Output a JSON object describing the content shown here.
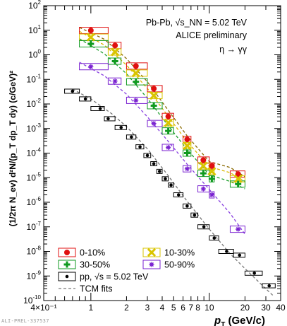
{
  "chart_data": {
    "type": "scatter",
    "title": "",
    "x_scale": "log",
    "y_scale": "log",
    "xlim": [
      0.4,
      40
    ],
    "ylim": [
      1e-10,
      100
    ],
    "xlabel": {
      "main": "p",
      "sub": "T",
      "unit": " (GeV/c)"
    },
    "ylabel": "(1/2π N_ev) d²N/(p_T dp_T dy) (c/GeV)²",
    "x_tick_labels": [
      {
        "value": 0.4,
        "label": "4×10⁻¹"
      },
      {
        "value": 1,
        "label": "1"
      },
      {
        "value": 2,
        "label": "2"
      },
      {
        "value": 3,
        "label": "3"
      },
      {
        "value": 4,
        "label": "4"
      },
      {
        "value": 5,
        "label": "5"
      },
      {
        "value": 6,
        "label": "6"
      },
      {
        "value": 7,
        "label": "7"
      },
      {
        "value": 8,
        "label": "8"
      },
      {
        "value": 10,
        "label": "10"
      },
      {
        "value": 20,
        "label": "20"
      },
      {
        "value": 30,
        "label": "30"
      },
      {
        "value": 40,
        "label": "40"
      }
    ],
    "y_tick_exponents": [
      -10,
      -9,
      -8,
      -7,
      -6,
      -5,
      -4,
      -3,
      -2,
      -1,
      0,
      1,
      2
    ],
    "annotations": {
      "system": "Pb-Pb, √s_NN = 5.02 TeV",
      "status": "ALICE preliminary",
      "channel": "η → γγ"
    },
    "series": [
      {
        "name": "0-10%",
        "color": "#e01010",
        "marker": "circle",
        "x": [
          1.0,
          1.6,
          2.4,
          3.4,
          4.5,
          6.5,
          8.9,
          10.5,
          17.5
        ],
        "y": [
          9.8,
          2.4,
          0.35,
          0.042,
          0.0031,
          0.00036,
          5.2e-05,
          3e-05,
          1.4e-05
        ],
        "x_lo": [
          0.8,
          1.4,
          2.0,
          3.0,
          4.0,
          6.0,
          8.0,
          10.0,
          15.0
        ],
        "x_hi": [
          1.4,
          1.8,
          3.0,
          4.0,
          5.0,
          7.0,
          10.0,
          11.0,
          20.0
        ]
      },
      {
        "name": "10-30%",
        "color": "#d9c400",
        "marker": "cross",
        "x": [
          1.0,
          1.6,
          2.4,
          3.4,
          4.5,
          6.5,
          8.9,
          10.5,
          17.5
        ],
        "y": [
          5.2,
          1.3,
          0.18,
          0.022,
          0.0017,
          0.0002,
          3e-05,
          1.8e-05,
          9e-06
        ],
        "x_lo": [
          0.8,
          1.4,
          2.0,
          3.0,
          4.0,
          6.0,
          8.0,
          10.0,
          15.0
        ],
        "x_hi": [
          1.4,
          1.8,
          3.0,
          4.0,
          5.0,
          7.0,
          10.0,
          11.0,
          20.0
        ]
      },
      {
        "name": "30-50%",
        "color": "#109a20",
        "marker": "plus",
        "x": [
          1.0,
          1.6,
          2.4,
          3.4,
          4.5,
          6.5,
          8.9,
          10.5,
          17.5
        ],
        "y": [
          2.8,
          0.55,
          0.08,
          0.0085,
          0.0008,
          0.0001,
          1.5e-05,
          9e-06,
          5.5e-06
        ],
        "x_lo": [
          0.8,
          1.4,
          2.0,
          3.0,
          4.0,
          6.0,
          8.0,
          10.0,
          15.0
        ],
        "x_hi": [
          1.4,
          1.8,
          3.0,
          4.0,
          5.0,
          7.0,
          10.0,
          11.0,
          20.0
        ]
      },
      {
        "name": "50-90%",
        "color": "#7a22d0",
        "marker": "star",
        "x": [
          1.0,
          1.6,
          2.4,
          3.4,
          4.5,
          6.5,
          8.9,
          10.5,
          17.5
        ],
        "y": [
          0.33,
          0.085,
          0.014,
          0.0016,
          0.00017,
          2.3e-05,
          3.5e-06,
          2e-06,
          8e-08
        ],
        "x_lo": [
          0.8,
          1.4,
          2.0,
          3.0,
          4.0,
          6.0,
          8.0,
          10.0,
          15.0
        ],
        "x_hi": [
          1.4,
          1.8,
          3.0,
          4.0,
          5.0,
          7.0,
          10.0,
          11.0,
          20.0
        ]
      },
      {
        "name": "pp, √s = 5.02 TeV",
        "color": "#000000",
        "marker": "dot",
        "x": [
          0.7,
          0.9,
          1.2,
          1.4,
          1.8,
          2.2,
          2.6,
          3.0,
          3.4,
          3.8,
          4.25,
          4.75,
          5.5,
          6.5,
          7.5,
          9.0,
          11.0,
          14.0,
          18.0,
          24.0,
          32.0
        ],
        "y": [
          0.033,
          0.016,
          0.0065,
          0.0025,
          0.0011,
          0.00045,
          0.00018,
          8e-05,
          3.7e-05,
          1.8e-05,
          9e-06,
          5e-06,
          2e-06,
          7e-07,
          3e-07,
          1e-07,
          3.5e-08,
          1e-08,
          7e-09,
          1.3e-09,
          4e-10
        ],
        "x_lo": [
          0.6,
          0.8,
          1.0,
          1.3,
          1.6,
          2.0,
          2.4,
          2.8,
          3.2,
          3.6,
          4.0,
          4.5,
          5.0,
          6.0,
          7.0,
          8.0,
          10.0,
          12.0,
          16.0,
          20.0,
          28.0
        ],
        "x_hi": [
          0.8,
          1.0,
          1.3,
          1.6,
          2.0,
          2.4,
          2.8,
          3.2,
          3.6,
          4.0,
          4.5,
          5.0,
          6.0,
          7.0,
          8.0,
          10.0,
          12.0,
          16.0,
          20.0,
          28.0,
          36.0
        ]
      }
    ],
    "fits": [
      {
        "name": "TCM fits",
        "color": "#8a6a00",
        "x": [
          0.8,
          1.3,
          2.0,
          3.0,
          4.5,
          6.5,
          10.0,
          15.0,
          20.0
        ],
        "y": [
          13,
          4.3,
          0.7,
          0.08,
          0.0055,
          0.0005,
          4.5e-05,
          2.6e-05,
          1.1e-05
        ]
      },
      {
        "name": "TCM fits",
        "color": "#d9b800",
        "x": [
          0.8,
          1.3,
          2.0,
          3.0,
          4.5,
          6.5,
          10.0,
          15.0,
          20.0
        ],
        "y": [
          9,
          2.5,
          0.38,
          0.043,
          0.0031,
          0.00029,
          2.8e-05,
          1.6e-05,
          7e-06
        ]
      },
      {
        "name": "TCM fits",
        "color": "#20a030",
        "x": [
          0.8,
          1.3,
          2.0,
          3.0,
          4.5,
          6.5,
          10.0,
          15.0,
          20.0
        ],
        "y": [
          4.5,
          1.1,
          0.17,
          0.017,
          0.0013,
          0.00014,
          1.3e-05,
          7e-06,
          3.5e-06
        ]
      },
      {
        "name": "TCM fits",
        "color": "#8840e0",
        "x": [
          0.8,
          1.3,
          2.0,
          3.0,
          4.5,
          6.5,
          10.0,
          15.0,
          20.0
        ],
        "y": [
          0.5,
          0.14,
          0.025,
          0.003,
          0.0003,
          3.5e-05,
          3.3e-06,
          3.5e-07,
          5e-08
        ]
      },
      {
        "name": "TCM fits",
        "color": "#777777",
        "x": [
          0.7,
          1.0,
          1.5,
          2.0,
          3.0,
          4.5,
          6.5,
          10.0,
          15.0,
          20.0,
          30.0,
          35.0
        ],
        "y": [
          0.04,
          0.016,
          0.004,
          0.0012,
          0.00015,
          1.2e-05,
          1.1e-06,
          8e-08,
          8e-09,
          2e-09,
          3e-10,
          1.5e-10
        ]
      }
    ],
    "legend": {
      "position": "bottom-left",
      "items": [
        {
          "label": "0-10%",
          "color": "#e01010",
          "marker": "circle"
        },
        {
          "label": "10-30%",
          "color": "#d9c400",
          "marker": "cross"
        },
        {
          "label": "30-50%",
          "color": "#109a20",
          "marker": "plus"
        },
        {
          "label": "50-90%",
          "color": "#7a22d0",
          "marker": "star"
        },
        {
          "label": "pp, √s = 5.02 TeV",
          "color": "#000000",
          "marker": "dot"
        },
        {
          "label": "TCM fits",
          "color": "#777777",
          "marker": "dashed-line"
        }
      ]
    }
  },
  "footer": "ALI-PREL-337537"
}
